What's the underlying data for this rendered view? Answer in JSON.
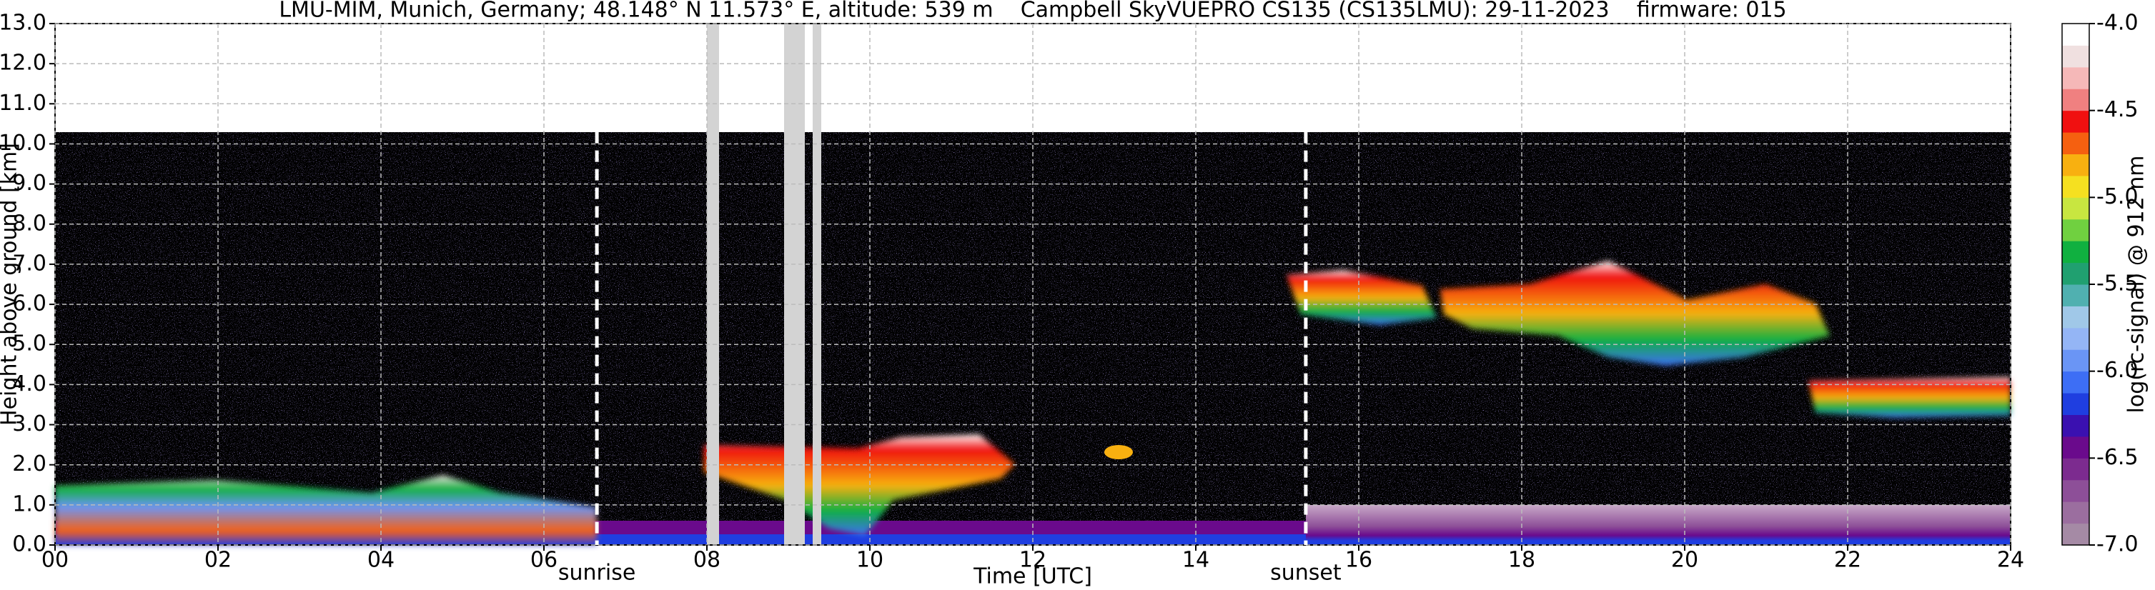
{
  "chart_data": {
    "type": "heatmap",
    "title": "LMU-MIM, Munich, Germany; 48.148° N 11.573° E, altitude: 539 m    Campbell SkyVUEPRO CS135 (CS135LMU): 29-11-2023    firmware: 015",
    "xlabel": "Time [UTC]",
    "ylabel": "Height above ground [km]",
    "colorbar_label": "log(rc-signal) @ 912 nm",
    "xlim": [
      0,
      24
    ],
    "xticks": [
      {
        "value": 0,
        "label": "00"
      },
      {
        "value": 2,
        "label": "02"
      },
      {
        "value": 4,
        "label": "04"
      },
      {
        "value": 6,
        "label": "06"
      },
      {
        "value": 8,
        "label": "08"
      },
      10,
      12,
      14,
      16,
      18,
      20,
      22,
      24
    ],
    "ylim": [
      0,
      13
    ],
    "yticks": [
      {
        "value": 0,
        "label": "0.0"
      },
      {
        "value": 1,
        "label": "1.0"
      },
      {
        "value": 2,
        "label": "2.0"
      },
      {
        "value": 3,
        "label": "3.0"
      },
      {
        "value": 4,
        "label": "4.0"
      },
      {
        "value": 5,
        "label": "5.0"
      },
      {
        "value": 6,
        "label": "6.0"
      },
      {
        "value": 7,
        "label": "7.0"
      },
      {
        "value": 8,
        "label": "8.0"
      },
      {
        "value": 9,
        "label": "9.0"
      },
      {
        "value": 10,
        "label": "10.0"
      },
      {
        "value": 11,
        "label": "11.0"
      },
      {
        "value": 12,
        "label": "12.0"
      },
      {
        "value": 13,
        "label": "13.0"
      }
    ],
    "clim": [
      -7,
      -4
    ],
    "cticks": [
      {
        "value": -7,
        "label": "-7.0"
      },
      {
        "value": -6.5,
        "label": "-6.5"
      },
      {
        "value": -6,
        "label": "-6.0"
      },
      {
        "value": -5.5,
        "label": "-5.5"
      },
      {
        "value": -5,
        "label": "-5.0"
      },
      {
        "value": -4.5,
        "label": "-4.5"
      },
      {
        "value": -4,
        "label": "-4.0"
      }
    ],
    "colormap": [
      "#a58aa5",
      "#9b6e9f",
      "#8d4f98",
      "#7c2b8f",
      "#6a0a8c",
      "#3a10b0",
      "#1f3ee0",
      "#3d6ef5",
      "#6a95f5",
      "#94b5f5",
      "#a0c8e8",
      "#50b0b0",
      "#20a070",
      "#10b040",
      "#70d040",
      "#c8e640",
      "#f5e020",
      "#f8b010",
      "#f56010",
      "#f01010",
      "#f08080",
      "#f5b8b8",
      "#f0e0e0",
      "#ffffff"
    ],
    "annotations": [
      {
        "text": "sunrise",
        "x": 6.65
      },
      {
        "text": "sunset",
        "x": 15.35
      }
    ],
    "grid": true
  }
}
